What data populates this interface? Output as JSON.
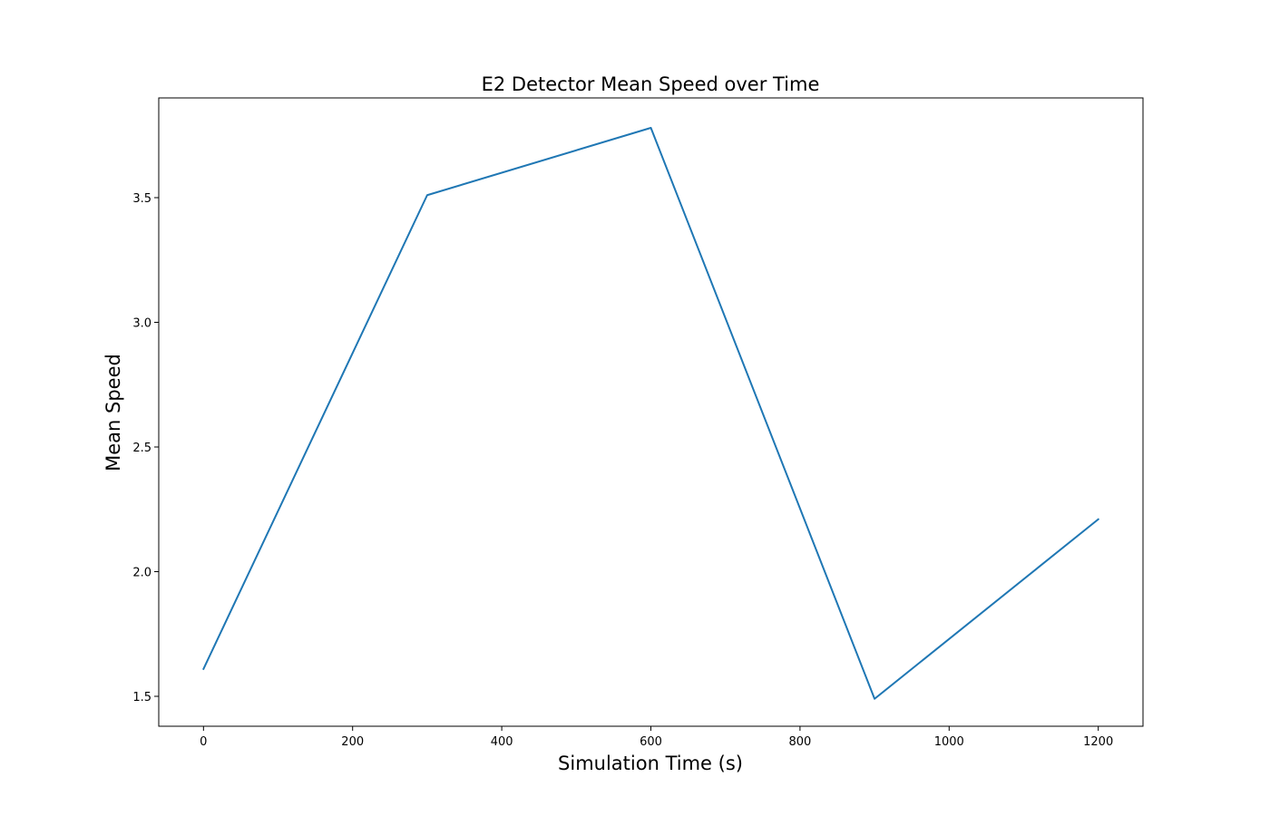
{
  "chart_data": {
    "type": "line",
    "title": "E2 Detector Mean Speed over Time",
    "xlabel": "Simulation Time (s)",
    "ylabel": "Mean Speed",
    "xlim": [
      -60,
      1260
    ],
    "ylim": [
      1.38,
      3.9
    ],
    "xticks": [
      0,
      200,
      400,
      600,
      800,
      1000,
      1200
    ],
    "yticks": [
      1.5,
      2.0,
      2.5,
      3.0,
      3.5
    ],
    "grid": false,
    "legend": "none",
    "series": [
      {
        "color": "#1f77b4",
        "x": [
          0,
          300,
          600,
          900,
          1200
        ],
        "y": [
          1.61,
          3.51,
          3.78,
          1.49,
          2.21
        ]
      }
    ]
  }
}
